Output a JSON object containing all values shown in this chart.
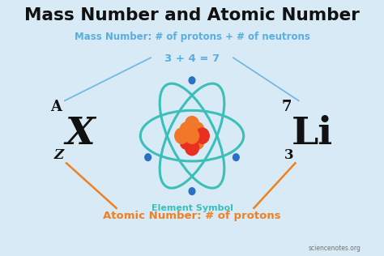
{
  "title": "Mass Number and Atomic Number",
  "subtitle": "Mass Number: # of protons + # of neutrons",
  "equation": "3 + 4 = 7",
  "element_symbol_label": "Element Symbol",
  "atomic_number_label": "Atomic Number: # of protons",
  "watermark": "sciencenotes.org",
  "bg_color": "#d8eaf5",
  "title_color": "#111111",
  "blue_color": "#5aade0",
  "orange_color": "#f08020",
  "teal_color": "#3bbfb8",
  "nucleus_orange": "#f07828",
  "nucleus_red": "#e83020",
  "electron_blue": "#2a70c8",
  "symbol_color": "#111111"
}
